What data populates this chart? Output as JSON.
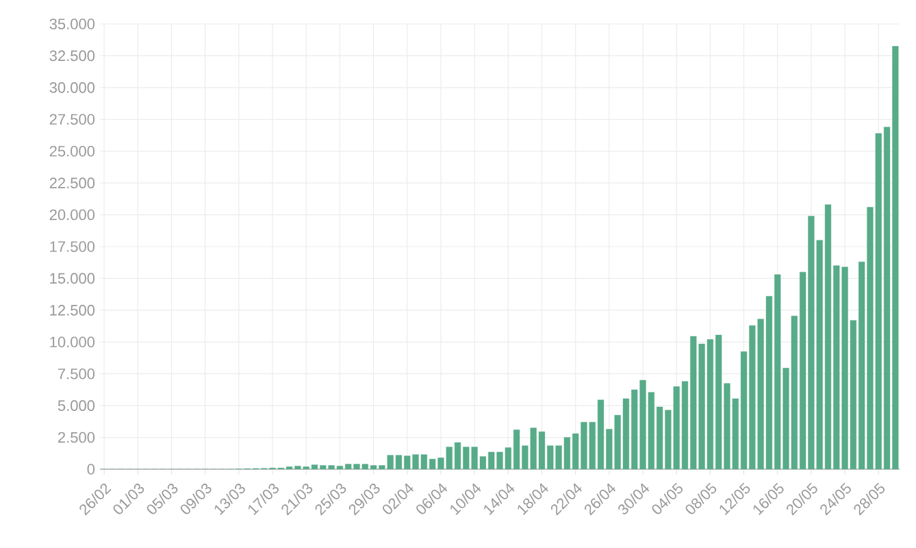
{
  "chart_data": {
    "type": "bar",
    "color": "#57ab88",
    "grid": true,
    "ylim": [
      0,
      35000
    ],
    "yticks": [
      0,
      {
        "value": 2500,
        "label": "2.500"
      },
      {
        "value": 5000,
        "label": "5.000"
      },
      {
        "value": 7500,
        "label": "7.500"
      },
      {
        "value": 10000,
        "label": "10.000"
      },
      {
        "value": 12500,
        "label": "12.500"
      },
      {
        "value": 15000,
        "label": "15.000"
      },
      {
        "value": 17500,
        "label": "17.500"
      },
      {
        "value": 20000,
        "label": "20.000"
      },
      {
        "value": 22500,
        "label": "22.500"
      },
      {
        "value": 25000,
        "label": "25.000"
      },
      {
        "value": 27500,
        "label": "27.500"
      },
      {
        "value": 30000,
        "label": "30.000"
      },
      {
        "value": 32500,
        "label": "32.500"
      },
      {
        "value": 35000,
        "label": "35.000"
      }
    ],
    "categories": [
      "26/02",
      null,
      null,
      null,
      "01/03",
      null,
      null,
      null,
      "05/03",
      null,
      null,
      null,
      "09/03",
      null,
      null,
      null,
      "13/03",
      null,
      null,
      null,
      "17/03",
      null,
      null,
      null,
      "21/03",
      null,
      null,
      null,
      "25/03",
      null,
      null,
      null,
      "29/03",
      null,
      null,
      null,
      "02/04",
      null,
      null,
      null,
      "06/04",
      null,
      null,
      null,
      "10/04",
      null,
      null,
      null,
      "14/04",
      null,
      null,
      null,
      "18/04",
      null,
      null,
      null,
      "22/04",
      null,
      null,
      null,
      "26/04",
      null,
      null,
      null,
      "30/04",
      null,
      null,
      null,
      "04/05",
      null,
      null,
      null,
      "08/05",
      null,
      null,
      null,
      "12/05",
      null,
      null,
      null,
      "16/05",
      null,
      null,
      null,
      "20/05",
      null,
      null,
      null,
      "24/05",
      null,
      null,
      null,
      "28/05",
      null,
      null
    ],
    "values": [
      0,
      0,
      0,
      0,
      0,
      0,
      0,
      0,
      0,
      0,
      0,
      0,
      0,
      0,
      0,
      0,
      30,
      50,
      60,
      70,
      100,
      100,
      200,
      250,
      200,
      350,
      300,
      300,
      250,
      400,
      400,
      400,
      300,
      300,
      1100,
      1100,
      1050,
      1150,
      1150,
      800,
      900,
      1750,
      2100,
      1750,
      1750,
      1000,
      1350,
      1350,
      1700,
      3100,
      1850,
      3250,
      2950,
      1850,
      1850,
      2500,
      2800,
      3700,
      3700,
      5450,
      3150,
      4250,
      5550,
      6250,
      7000,
      6050,
      4900,
      4650,
      6500,
      6900,
      10450,
      9850,
      10200,
      10550,
      6750,
      5550,
      9250,
      11300,
      11800,
      13600,
      15300,
      7950,
      12050,
      15500,
      19900,
      18000,
      20800,
      16000,
      15900,
      11700,
      16300,
      20600,
      26400,
      26900,
      33250
    ]
  }
}
